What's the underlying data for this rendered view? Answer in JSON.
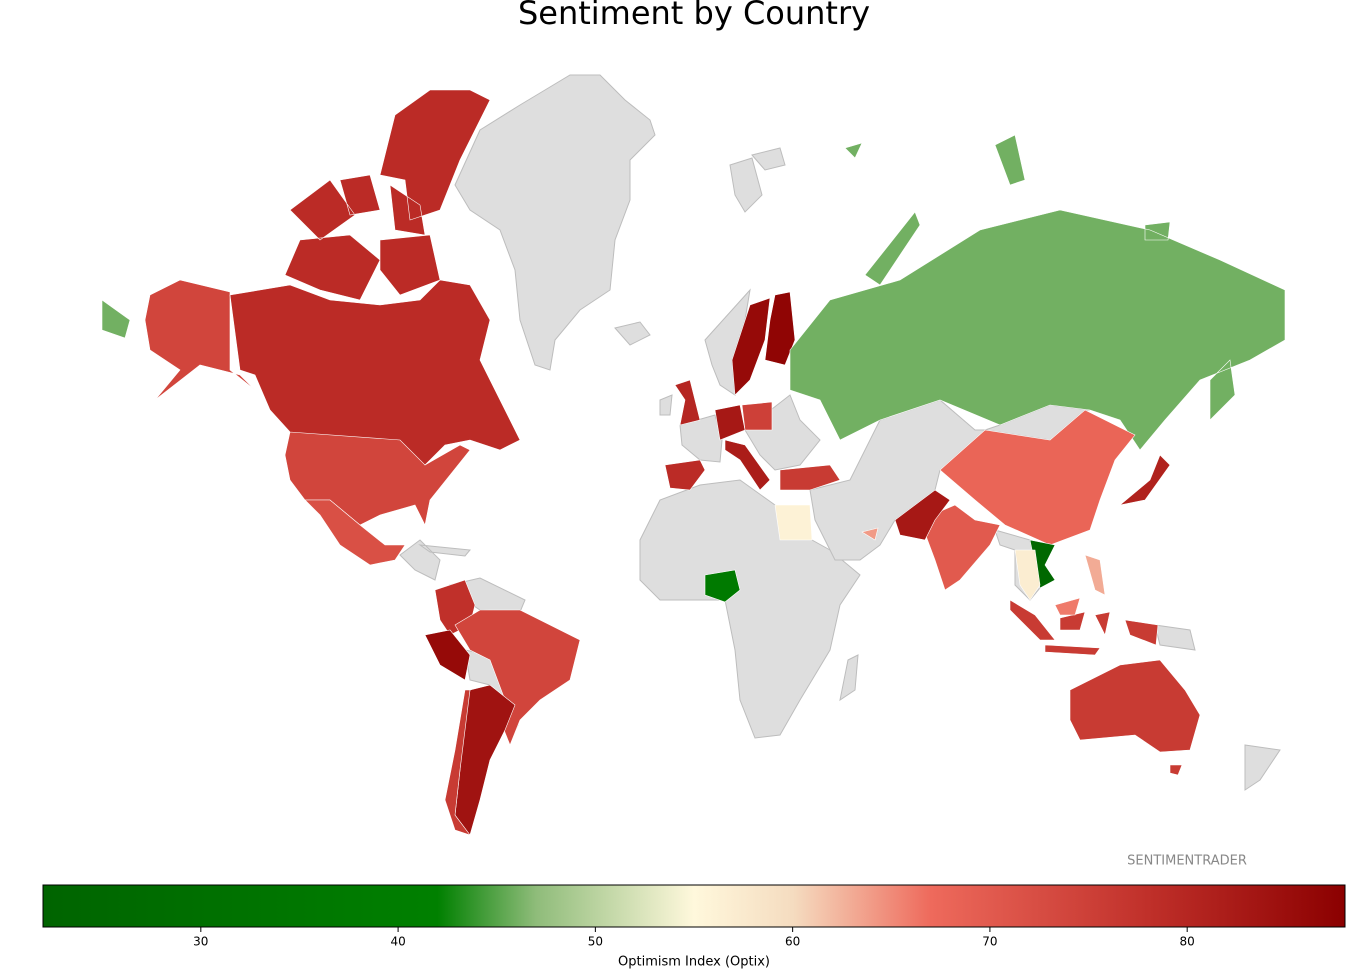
{
  "chart_data": {
    "type": "choropleth",
    "title": "Sentiment by Country",
    "watermark": "SENTIMENTRADER",
    "colorbar_label": "Optimism Index (Optix)",
    "values": [
      74,
      79,
      72,
      78,
      86,
      74,
      84,
      76,
      80,
      79,
      83,
      75,
      82,
      86,
      87,
      76,
      46,
      68,
      70,
      83,
      81,
      76,
      76,
      25,
      57,
      63,
      66,
      38,
      56,
      64
    ],
    "clim": [
      22,
      88
    ],
    "cticks": [
      30,
      40,
      50,
      60,
      70,
      80
    ],
    "colorscale": [
      [
        22,
        "#006400"
      ],
      [
        42,
        "#008000"
      ],
      [
        47,
        "#8fbc7a"
      ],
      [
        55,
        "#fff8dc"
      ],
      [
        60,
        "#f5dcc0"
      ],
      [
        67,
        "#ee6a5c"
      ],
      [
        78,
        "#c0302a"
      ],
      [
        88,
        "#8b0000"
      ]
    ]
  }
}
